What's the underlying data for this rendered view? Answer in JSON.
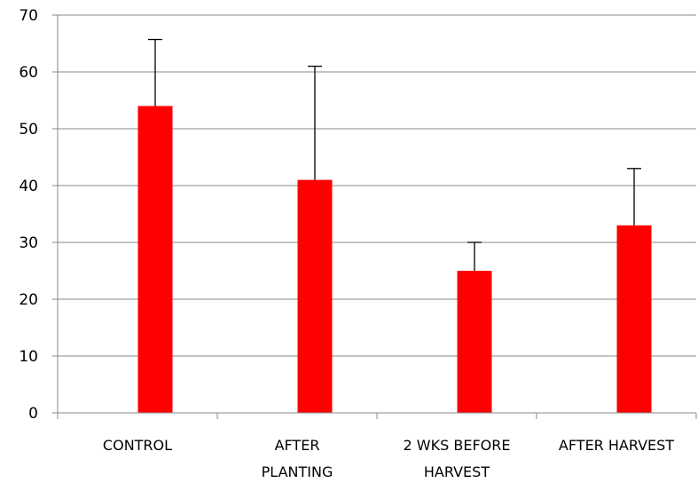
{
  "chart_data": {
    "type": "bar",
    "title": "",
    "xlabel": "",
    "ylabel": "",
    "ylim": [
      0,
      70
    ],
    "ytick_step": 10,
    "grid": true,
    "legend": "none",
    "categories": [
      [
        "CONTROL"
      ],
      [
        "AFTER",
        "PLANTING"
      ],
      [
        "2 WKS BEFORE",
        "HARVEST"
      ],
      [
        "AFTER HARVEST"
      ]
    ],
    "values": [
      54,
      41,
      25,
      33
    ],
    "error_upper": [
      65.7,
      61,
      30,
      43
    ],
    "colors": {
      "bar": "#ff0000",
      "grid": "#888888",
      "error": "#000000"
    }
  }
}
